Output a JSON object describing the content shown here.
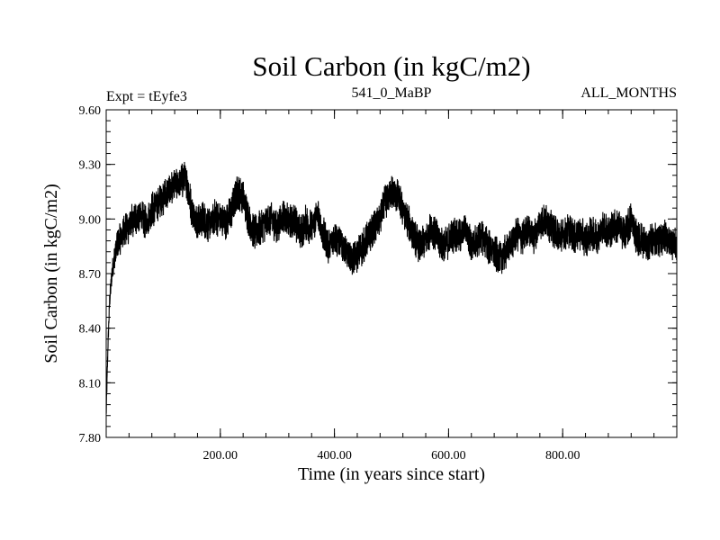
{
  "chart_data": {
    "type": "line",
    "title": "Soil Carbon (in kgC/m2)",
    "subtitle_left": "Expt = tEyfe3",
    "subtitle_center": "541_0_MaBP",
    "subtitle_right": "ALL_MONTHS",
    "xlabel": "Time (in years since start)",
    "ylabel": "Soil Carbon (in kgC/m2)",
    "xlim": [
      0,
      1000
    ],
    "ylim": [
      7.8,
      9.6
    ],
    "xticks": [
      200,
      400,
      600,
      800
    ],
    "xtick_labels": [
      "200.00",
      "400.00",
      "600.00",
      "800.00"
    ],
    "yticks": [
      7.8,
      8.1,
      8.4,
      8.7,
      9.0,
      9.3,
      9.6
    ],
    "ytick_labels": [
      "7.80",
      "8.10",
      "8.40",
      "8.70",
      "9.00",
      "9.30",
      "9.60"
    ],
    "grid": false,
    "line_color": "#000000",
    "series": [
      {
        "x": [
          0,
          3,
          6,
          10,
          15,
          20,
          30,
          40,
          50,
          60,
          70,
          80,
          90,
          100,
          110,
          120,
          130,
          140,
          150,
          160,
          170,
          180,
          190,
          200,
          210,
          220,
          230,
          240,
          250,
          260,
          270,
          280,
          290,
          300,
          310,
          320,
          330,
          340,
          350,
          360,
          370,
          380,
          390,
          400,
          410,
          420,
          430,
          440,
          450,
          460,
          470,
          480,
          490,
          500,
          510,
          520,
          530,
          540,
          550,
          560,
          570,
          580,
          590,
          600,
          610,
          620,
          630,
          640,
          650,
          660,
          670,
          680,
          690,
          700,
          710,
          720,
          730,
          740,
          750,
          760,
          770,
          780,
          790,
          800,
          810,
          820,
          830,
          840,
          850,
          860,
          870,
          880,
          890,
          900,
          910,
          920,
          930,
          940,
          950,
          960,
          970,
          980,
          990,
          1000
        ],
        "values": [
          7.92,
          8.3,
          8.55,
          8.7,
          8.8,
          8.87,
          8.93,
          8.96,
          9.0,
          9.02,
          8.98,
          9.05,
          9.08,
          9.12,
          9.15,
          9.18,
          9.2,
          9.22,
          9.05,
          8.98,
          9.0,
          8.97,
          9.01,
          9.0,
          8.98,
          9.05,
          9.15,
          9.12,
          9.0,
          8.92,
          8.95,
          8.98,
          9.0,
          8.95,
          9.02,
          8.98,
          9.0,
          8.92,
          8.98,
          8.95,
          9.03,
          8.92,
          8.85,
          8.9,
          8.88,
          8.82,
          8.78,
          8.8,
          8.85,
          8.9,
          8.95,
          9.0,
          9.1,
          9.15,
          9.13,
          9.05,
          8.98,
          8.9,
          8.85,
          8.88,
          8.95,
          8.9,
          8.85,
          8.88,
          8.92,
          8.9,
          8.95,
          8.85,
          8.88,
          8.9,
          8.85,
          8.82,
          8.78,
          8.82,
          8.87,
          8.92,
          8.9,
          8.95,
          8.9,
          8.98,
          9.0,
          8.95,
          8.92,
          8.9,
          8.94,
          8.9,
          8.93,
          8.88,
          8.92,
          8.9,
          8.95,
          8.93,
          8.96,
          8.95,
          8.92,
          9.0,
          8.9,
          8.88,
          8.85,
          8.9,
          8.87,
          8.9,
          8.88,
          8.86
        ],
        "amplitude": 0.08
      }
    ]
  }
}
